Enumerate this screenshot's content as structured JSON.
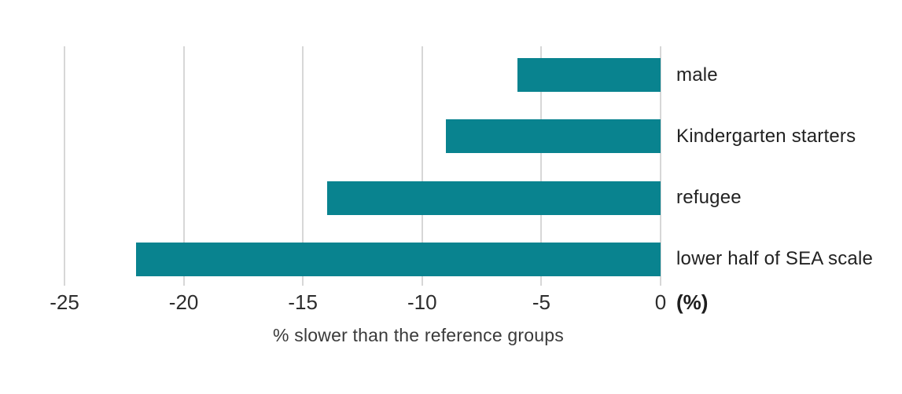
{
  "chart_data": {
    "type": "bar",
    "orientation": "horizontal",
    "categories": [
      "male",
      "Kindergarten starters",
      "refugee",
      "lower half of SEA scale"
    ],
    "values": [
      -6,
      -9,
      -14,
      -22
    ],
    "xticks": [
      -25,
      -20,
      -15,
      -10,
      -5,
      0
    ],
    "xtick_labels": [
      "-25",
      "-20",
      "-15",
      "-10",
      "-5",
      "0"
    ],
    "xlim": [
      -25,
      0
    ],
    "xlabel": "% slower than the reference groups",
    "axis_unit_label": "(%)",
    "title": "",
    "legend": false,
    "grid": "vertical",
    "colors": {
      "bar": "#09838F",
      "gridline": "#D7D7D7",
      "tick_text": "#2D2D2D",
      "category_text": "#222222",
      "unit_text": "#1E1E1E",
      "axis_title_text": "#3A3A3A",
      "background": "#FFFFFF"
    }
  }
}
